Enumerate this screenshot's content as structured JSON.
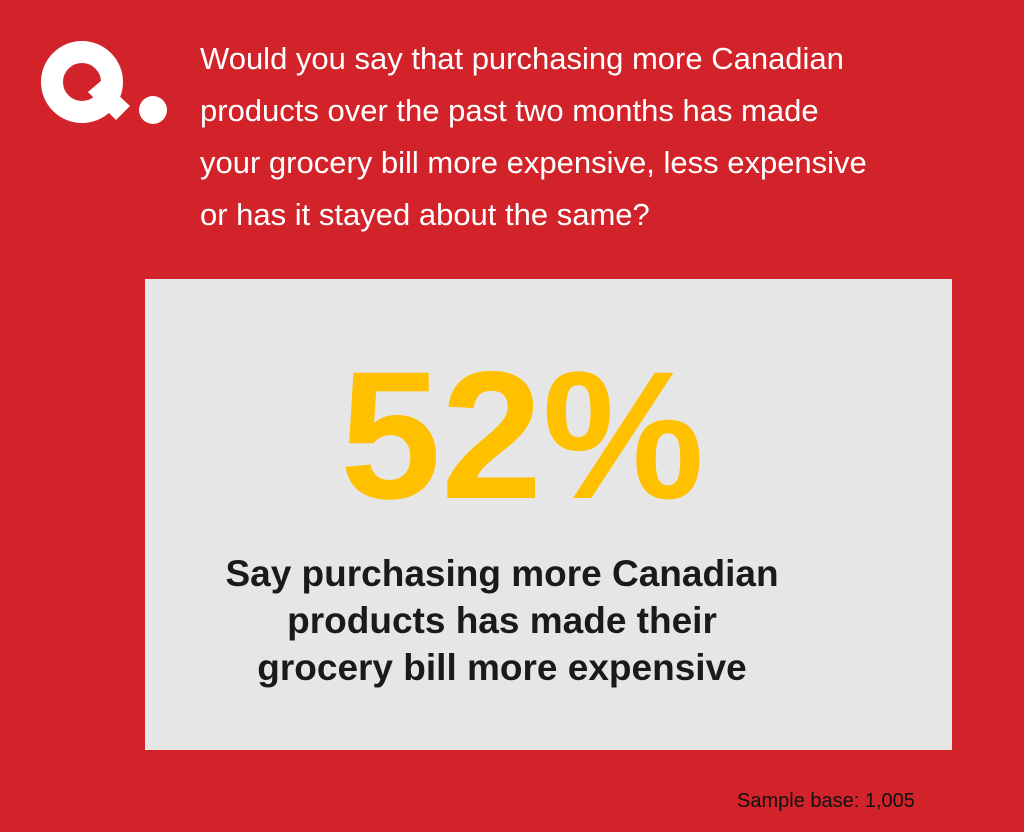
{
  "logo": {
    "text": "Q.",
    "color": "#ffffff"
  },
  "question": {
    "lines": [
      "Would you say that purchasing more Canadian",
      "products over the past two months has made",
      "your grocery bill more expensive, less expensive",
      "or has it stayed about the same?"
    ]
  },
  "result": {
    "stat": "52%",
    "caption_lines": [
      "Say purchasing more Canadian",
      "products has made their",
      "grocery bill more expensive"
    ]
  },
  "footer": {
    "sample_base": "Sample base: 1,005"
  },
  "colors": {
    "background": "#d2232b",
    "panel": "#e6e6e6",
    "stat": "#ffc000",
    "caption": "#1a1a1a"
  }
}
